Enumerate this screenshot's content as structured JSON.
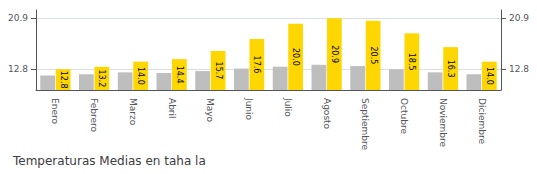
{
  "chart_data": {
    "type": "bar",
    "title": "Temperaturas Medias en taha la",
    "categories": [
      "Enero",
      "Febrero",
      "Marzo",
      "Abril",
      "Mayo",
      "Junio",
      "Julio",
      "Agosto",
      "Septiembre",
      "Octubre",
      "Noviembre",
      "Diciembre"
    ],
    "series": [
      {
        "color": "#BEBEBE",
        "values": [
          11.8,
          12.0,
          12.3,
          12.2,
          12.5,
          12.9,
          13.2,
          13.5,
          13.3,
          12.8,
          12.3,
          12.0
        ]
      },
      {
        "color": "#FFD700",
        "values": [
          12.8,
          13.2,
          14.0,
          14.4,
          15.7,
          17.6,
          20.0,
          20.9,
          20.5,
          18.5,
          16.3,
          14.0
        ],
        "data_labels": true,
        "value_labels": [
          "12.8",
          "13.2",
          "14.0",
          "14.4",
          "15.7",
          "17.6",
          "20.0",
          "20.9",
          "20.5",
          "18.5",
          "16.3",
          "14.0"
        ]
      }
    ],
    "ylim": [
      9.5,
      22.2
    ],
    "yticks": [
      12.8,
      20.9
    ],
    "y2lim": [
      9.5,
      22.2
    ],
    "y2ticks": [
      12.8,
      20.9
    ],
    "grid": true
  }
}
